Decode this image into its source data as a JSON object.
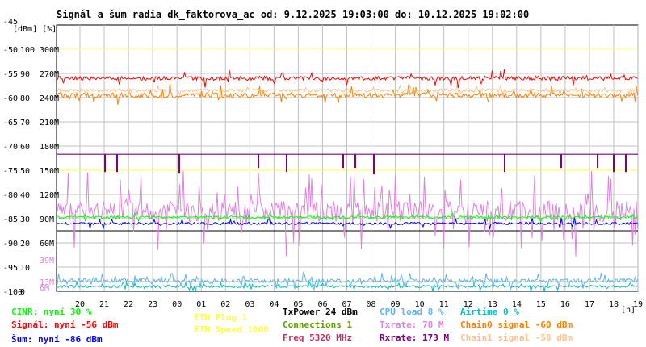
{
  "title": "Signál a šum radia dk_faktorova_ac od: 9.12.2025 19:03:00 do: 10.12.2025 19:02:00",
  "y_units": "[dBm] [%]",
  "x_unit": "[h]",
  "colors": {
    "signal": "#ff0000",
    "chain": "#ff8000",
    "noise": "#0000ff",
    "cinr": "#00ff00",
    "txrate": "#e080e0",
    "rxrate": "#800080",
    "cpu": "#60b0ff",
    "airtime": "#00c0c0",
    "eth": "#ffff40",
    "grid": "#c0c0c0"
  },
  "chart_data": {
    "type": "line",
    "x": [
      "20",
      "21",
      "22",
      "23",
      "00",
      "01",
      "02",
      "03",
      "04",
      "05",
      "06",
      "07",
      "08",
      "09",
      "10",
      "11",
      "12",
      "13",
      "14",
      "15",
      "16",
      "17",
      "18",
      "19"
    ],
    "y_ticks_dbm": [
      "-45",
      "-50",
      "-55",
      "-60",
      "-65",
      "-70",
      "-75",
      "-80",
      "-85",
      "-90",
      "-95",
      "-100"
    ],
    "y_ticks_pct": [
      "",
      "100",
      "90",
      "80",
      "70",
      "60",
      "50",
      "40",
      "30",
      "20",
      "10",
      "0"
    ],
    "y_ticks_rate": [
      "",
      "300M",
      "270M",
      "240M",
      "210M",
      "180M",
      "150M",
      "120M",
      "90M",
      "60M",
      "39M",
      "13M",
      "6M"
    ],
    "ylim_dbm": [
      -100,
      -45
    ],
    "series": [
      {
        "name": "Signál",
        "approx_dbm": -56,
        "color": "signal"
      },
      {
        "name": "Chain0 signal",
        "approx_dbm": -60,
        "color": "chain"
      },
      {
        "name": "Šum",
        "approx_dbm": -86,
        "color": "noise"
      },
      {
        "name": "Txrate",
        "approx_pct": 25,
        "color": "txrate"
      },
      {
        "name": "Rxrate",
        "approx_pct": 57,
        "color": "rxrate"
      },
      {
        "name": "CINR",
        "approx_pct": 30,
        "color": "cinr"
      },
      {
        "name": "CPU load",
        "approx_pct": 8,
        "color": "cpu"
      },
      {
        "name": "Airtime",
        "approx_pct": 0,
        "color": "airtime"
      }
    ]
  },
  "stats": {
    "cinr": "CINR: nyní 30 %",
    "signal": "Signál: nyní -56 dBm",
    "noise": "Šum: nyní -86 dBm",
    "eth_plug": "ETH Plug 1",
    "eth_speed": "ETH Speed 1000",
    "txpower": "TxPower 24 dBm",
    "connections": "Connections 1",
    "freq": "Freq 5320 MHz",
    "cpu": "CPU load 8 %",
    "txrate": "Txrate: 78 M",
    "rxrate": "Rxrate: 173 M",
    "airtime": "Airtime 0 %",
    "chain0": "Chain0 signal -60 dBm",
    "chain1": "Chain1 signal -58 dBm"
  }
}
